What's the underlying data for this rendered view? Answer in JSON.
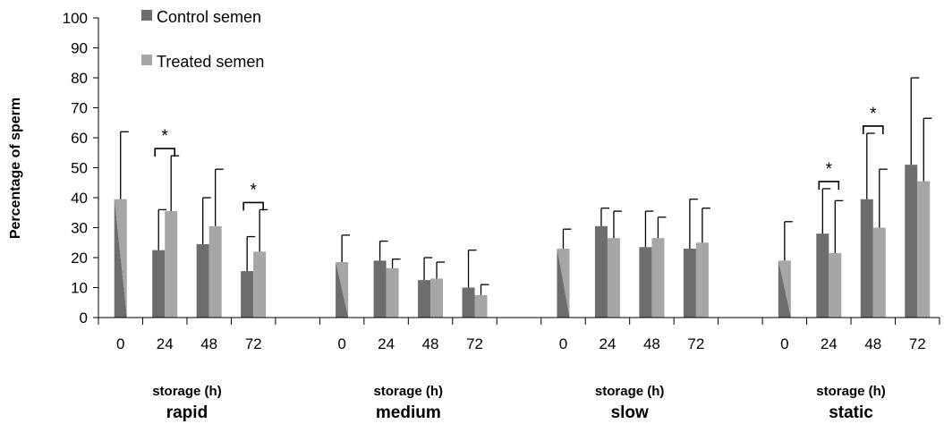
{
  "chart_data": {
    "type": "bar",
    "ylabel": "Percentage of sperm",
    "ylim": [
      0,
      100
    ],
    "yticks": [
      0,
      10,
      20,
      30,
      40,
      50,
      60,
      70,
      80,
      90,
      100
    ],
    "legend": {
      "placement": "top-left"
    },
    "series": [
      {
        "name": "Control semen",
        "color": "#6d6d6d"
      },
      {
        "name": "Treated semen",
        "color": "#a6a6a6"
      }
    ],
    "groups": [
      {
        "name": "rapid",
        "subtitle": "storage (h)",
        "points": [
          {
            "label": "0",
            "baseline": 39.5,
            "baseline_err": 62
          },
          {
            "label": "24",
            "control": 22.5,
            "control_err": 36,
            "treated": 35.5,
            "treated_err": 54,
            "sig": "*"
          },
          {
            "label": "48",
            "control": 24.5,
            "control_err": 40,
            "treated": 30.5,
            "treated_err": 49.5
          },
          {
            "label": "72",
            "control": 15.5,
            "control_err": 27,
            "treated": 22,
            "treated_err": 36,
            "sig": "*"
          }
        ]
      },
      {
        "name": "medium",
        "subtitle": "storage (h)",
        "points": [
          {
            "label": "0",
            "baseline": 18.5,
            "baseline_err": 27.5
          },
          {
            "label": "24",
            "control": 19,
            "control_err": 25.5,
            "treated": 16.5,
            "treated_err": 19.5
          },
          {
            "label": "48",
            "control": 12.5,
            "control_err": 20,
            "treated": 13,
            "treated_err": 18.5
          },
          {
            "label": "72",
            "control": 10,
            "control_err": 22.5,
            "treated": 7.5,
            "treated_err": 11
          }
        ]
      },
      {
        "name": "slow",
        "subtitle": "storage (h)",
        "points": [
          {
            "label": "0",
            "baseline": 23,
            "baseline_err": 29.5
          },
          {
            "label": "24",
            "control": 30.5,
            "control_err": 36.5,
            "treated": 26.5,
            "treated_err": 35.5
          },
          {
            "label": "48",
            "control": 23.5,
            "control_err": 35.5,
            "treated": 26.5,
            "treated_err": 33.5
          },
          {
            "label": "72",
            "control": 23,
            "control_err": 39.5,
            "treated": 25,
            "treated_err": 36.5
          }
        ]
      },
      {
        "name": "static",
        "subtitle": "storage (h)",
        "points": [
          {
            "label": "0",
            "baseline": 19,
            "baseline_err": 32
          },
          {
            "label": "24",
            "control": 28,
            "control_err": 43,
            "treated": 21.5,
            "treated_err": 39,
            "sig": "*"
          },
          {
            "label": "48",
            "control": 39.5,
            "control_err": 61.5,
            "treated": 30,
            "treated_err": 49.5,
            "sig": "*"
          },
          {
            "label": "72",
            "control": 51,
            "control_err": 80,
            "treated": 45.5,
            "treated_err": 66.5
          }
        ]
      }
    ]
  }
}
